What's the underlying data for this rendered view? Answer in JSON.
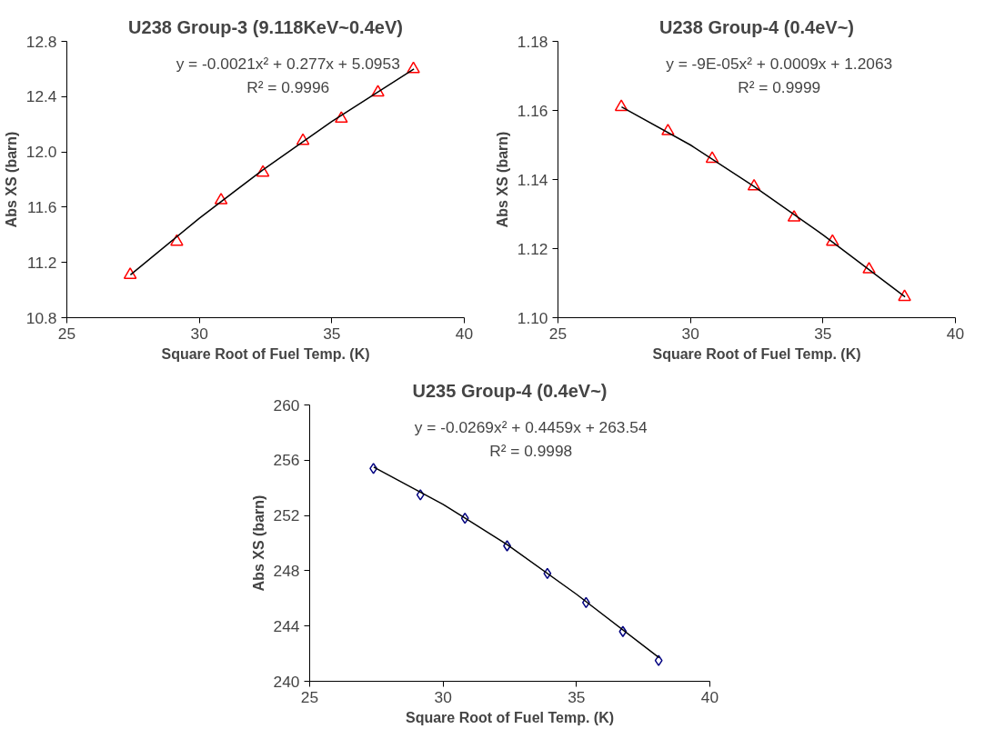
{
  "chart_data": [
    {
      "type": "scatter",
      "title": "U238 Group-3 (9.118KeV~0.4eV)",
      "xlabel": "Square Root of Fuel Temp. (K)",
      "ylabel": "Abs XS (barn)",
      "x": [
        27.39,
        29.15,
        30.82,
        32.4,
        33.91,
        35.36,
        36.74,
        38.08
      ],
      "xlim": [
        25,
        40
      ],
      "xticks": [
        25,
        30,
        35,
        40
      ],
      "ylim": [
        10.8,
        12.8
      ],
      "yticks": [
        {
          "value": 10.8,
          "label": "10.8"
        },
        {
          "value": 11.2,
          "label": "11.2"
        },
        {
          "value": 11.6,
          "label": "11.6"
        },
        {
          "value": 12.0,
          "label": "12.0"
        },
        {
          "value": 12.4,
          "label": "12.4"
        },
        {
          "value": 12.8,
          "label": "12.8"
        }
      ],
      "grid": false,
      "series": [
        {
          "marker": "triangle",
          "color": "#ff0000",
          "values": [
            11.11,
            11.35,
            11.65,
            11.85,
            12.08,
            12.24,
            12.43,
            12.6
          ]
        },
        {
          "type": "line",
          "color": "#000000",
          "x": [
            27.4,
            30,
            32.4,
            35,
            38.1
          ],
          "values": [
            11.11,
            11.52,
            11.87,
            12.22,
            12.6
          ]
        }
      ],
      "annotations": [
        "y = -0.0021x² + 0.277x + 5.0953",
        "R² = 0.9996"
      ]
    },
    {
      "type": "scatter",
      "title": "U238 Group-4 (0.4eV~)",
      "xlabel": "Square Root of Fuel Temp. (K)",
      "ylabel": "Abs XS (barn)",
      "x": [
        27.39,
        29.15,
        30.82,
        32.4,
        33.91,
        35.36,
        36.74,
        38.08
      ],
      "xlim": [
        25,
        40
      ],
      "xticks": [
        25,
        30,
        35,
        40
      ],
      "ylim": [
        1.1,
        1.18
      ],
      "yticks": [
        {
          "value": 1.1,
          "label": "1.10"
        },
        {
          "value": 1.12,
          "label": "1.12"
        },
        {
          "value": 1.14,
          "label": "1.14"
        },
        {
          "value": 1.16,
          "label": "1.16"
        },
        {
          "value": 1.18,
          "label": "1.18"
        }
      ],
      "grid": false,
      "series": [
        {
          "marker": "triangle",
          "color": "#ff0000",
          "values": [
            1.161,
            1.154,
            1.146,
            1.138,
            1.129,
            1.122,
            1.114,
            1.106
          ]
        },
        {
          "type": "line",
          "color": "#000000",
          "x": [
            27.4,
            30,
            32.4,
            35,
            38.1
          ],
          "values": [
            1.161,
            1.15,
            1.138,
            1.124,
            1.106
          ]
        }
      ],
      "annotations": [
        "y = -9E-05x² + 0.0009x + 1.2063",
        "R² = 0.9999"
      ]
    },
    {
      "type": "scatter",
      "title": "U235 Group-4 (0.4eV~)",
      "xlabel": "Square Root of Fuel Temp. (K)",
      "ylabel": "Abs XS (barn)",
      "x": [
        27.39,
        29.15,
        30.82,
        32.4,
        33.91,
        35.36,
        36.74,
        38.08
      ],
      "xlim": [
        25,
        40
      ],
      "xticks": [
        25,
        30,
        35,
        40
      ],
      "ylim": [
        240,
        260
      ],
      "yticks": [
        240,
        244,
        248,
        252,
        256,
        260
      ],
      "grid": false,
      "series": [
        {
          "marker": "diamond",
          "color": "#000080",
          "values": [
            255.4,
            253.5,
            251.8,
            249.8,
            247.8,
            245.7,
            243.6,
            241.5
          ]
        },
        {
          "type": "line",
          "color": "#000000",
          "x": [
            27.4,
            30,
            32.4,
            35,
            38.1
          ],
          "values": [
            255.5,
            252.8,
            249.9,
            246.3,
            241.7
          ]
        }
      ],
      "annotations": [
        "y = -0.0269x² + 0.4459x + 263.54",
        "R² = 0.9998"
      ]
    }
  ]
}
